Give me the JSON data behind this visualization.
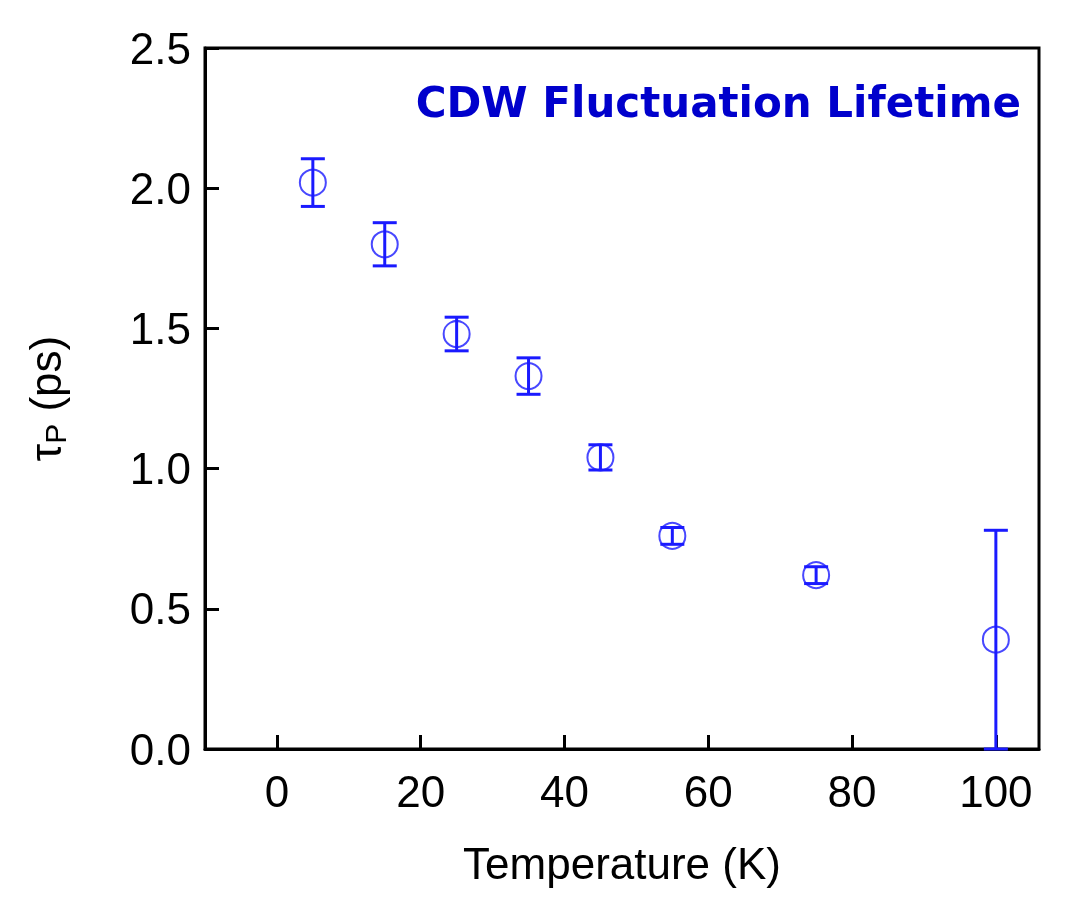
{
  "chart_data": {
    "type": "scatter",
    "title": "CDW Fluctuation Lifetime",
    "xlabel": "Temperature (K)",
    "ylabel": "τ$_{P}$ (ps)",
    "x": [
      5,
      15,
      25,
      35,
      45,
      55,
      75,
      100
    ],
    "series": [
      {
        "color": "#1a1aff",
        "values": [
          2.02,
          1.8,
          1.48,
          1.33,
          1.04,
          0.76,
          0.62,
          0.39
        ],
        "errors": [
          0.085,
          0.077,
          0.06,
          0.065,
          0.045,
          0.03,
          0.03,
          0.39
        ]
      }
    ],
    "xlim": [
      -10,
      106
    ],
    "xticks": [
      0,
      20,
      40,
      60,
      80,
      100
    ],
    "ylim": [
      0,
      2.5
    ],
    "yticks": [
      {
        "value": 0,
        "label": "0.0"
      },
      0.5,
      {
        "value": 1,
        "label": "1.0"
      },
      1.5,
      {
        "value": 2,
        "label": "2.0"
      },
      2.5
    ],
    "marker": "circle",
    "grid": false
  }
}
